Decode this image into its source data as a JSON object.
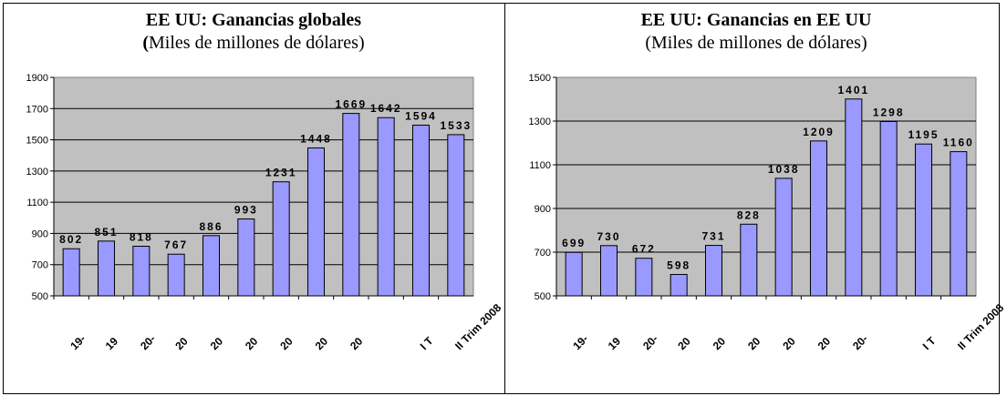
{
  "charts": [
    {
      "title": "EE UU: Ganancias globales",
      "subtitle_open": "(",
      "subtitle_rest": "Miles de millones de dólares)",
      "colors": {
        "bar": "#9999ff",
        "plot_bg": "#c0c0c0",
        "grid": "#000000"
      }
    },
    {
      "title": "EE UU: Ganancias en EE UU",
      "subtitle_open": "(",
      "subtitle_rest": "Miles de millones de dólares)",
      "colors": {
        "bar": "#9999ff",
        "plot_bg": "#c0c0c0",
        "grid": "#000000"
      }
    }
  ],
  "chart_data": [
    {
      "type": "bar",
      "title": "EE UU: Ganancias globales",
      "subtitle": "(Miles de millones de dólares)",
      "categories": [
        "19-",
        "19",
        "20-",
        "20",
        "20",
        "20",
        "20",
        "20",
        "20",
        "",
        "I T",
        "II Trim 2008"
      ],
      "values": [
        802,
        851,
        818,
        767,
        886,
        993,
        1231,
        1448,
        1669,
        1642,
        1594,
        1533
      ],
      "data_labels": [
        "802",
        "851",
        "818",
        "767",
        "886",
        "993",
        "1231",
        "1448",
        "1669",
        "1642",
        "1594",
        "1533"
      ],
      "ylim": [
        500,
        1900
      ],
      "yticks": [
        "500",
        "700",
        "900",
        "1100",
        "1300",
        "1500",
        "1700",
        "1900"
      ],
      "grid": true,
      "legend": "none"
    },
    {
      "type": "bar",
      "title": "EE UU: Ganancias en EE UU",
      "subtitle": "(Miles de millones de dólares)",
      "categories": [
        "19-",
        "19",
        "20-",
        "20",
        "20",
        "20",
        "20",
        "20",
        "20-",
        "",
        "I T",
        "II Trim 2008"
      ],
      "values": [
        699,
        730,
        672,
        598,
        731,
        828,
        1038,
        1209,
        1401,
        1298,
        1195,
        1160
      ],
      "data_labels": [
        "699",
        "730",
        "672",
        "598",
        "731",
        "828",
        "1038",
        "1209",
        "1401",
        "1298",
        "1195",
        "1160"
      ],
      "ylim": [
        500,
        1500
      ],
      "yticks": [
        "500",
        "700",
        "900",
        "1100",
        "1300",
        "1500"
      ],
      "grid": true,
      "legend": "none"
    }
  ]
}
